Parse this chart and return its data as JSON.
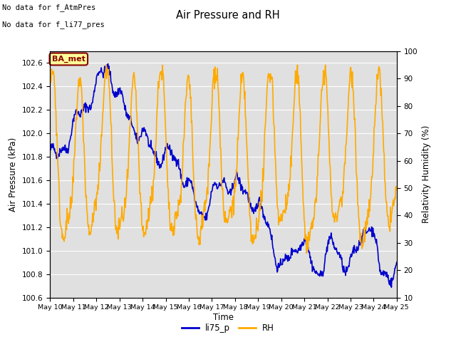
{
  "title": "Air Pressure and RH",
  "xlabel": "Time",
  "ylabel_left": "Air Pressure (kPa)",
  "ylabel_right": "Relativity Humidity (%)",
  "note1": "No data for f_AtmPres",
  "note2": "No data for f_li77_pres",
  "legend_label1": "li75_p",
  "legend_label2": "RH",
  "legend_color1": "#0000cc",
  "legend_color2": "#ffaa00",
  "ba_met_label": "BA_met",
  "ba_met_facecolor": "#ffff99",
  "ba_met_edgecolor": "#880000",
  "ba_met_textcolor": "#880000",
  "ylim_left": [
    100.6,
    102.7
  ],
  "ylim_right": [
    10,
    100
  ],
  "yticks_left": [
    100.6,
    100.8,
    101.0,
    101.2,
    101.4,
    101.6,
    101.8,
    102.0,
    102.2,
    102.4,
    102.6
  ],
  "yticks_right": [
    10,
    20,
    30,
    40,
    50,
    60,
    70,
    80,
    90,
    100
  ],
  "xtick_labels": [
    "May 10",
    "May 11",
    "May 12",
    "May 13",
    "May 14",
    "May 15",
    "May 16",
    "May 17",
    "May 18",
    "May 19",
    "May 20",
    "May 21",
    "May 22",
    "May 23",
    "May 24",
    "May 25"
  ],
  "bg_color": "#e0e0e0",
  "line_color_blue": "#0000cc",
  "line_color_orange": "#ffaa00",
  "line_width": 1.2
}
